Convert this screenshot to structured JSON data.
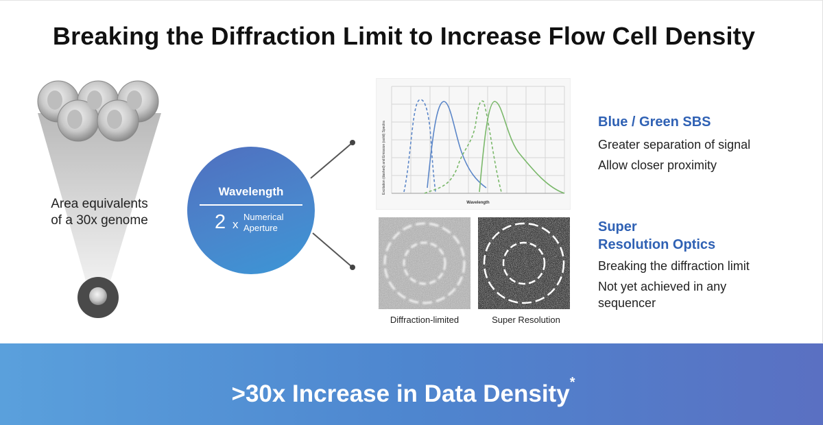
{
  "title": "Breaking the Diffraction Limit to Increase Flow Cell Density",
  "left": {
    "area_line1": "Area equivalents",
    "area_line2": "of a 30x genome"
  },
  "circle": {
    "wavelength": "Wavelength",
    "factor": "2",
    "factor_suffix": "x",
    "na_line1": "Numerical",
    "na_line2": "Aperture"
  },
  "spectra_chart": {
    "ylabel": "Excitation (dashed) and Emission (solid) Spectra",
    "xlabel": "Wavelength",
    "colors": {
      "blue": "#5b86c8",
      "green": "#7ab86a"
    }
  },
  "images": {
    "left_caption": "Diffraction-limited",
    "right_caption": "Super Resolution"
  },
  "right": {
    "block1_title": "Blue / Green SBS",
    "block1_line1": "Greater separation of signal",
    "block1_line2": "Allow closer proximity",
    "block2_title_line1": "Super",
    "block2_title_line2": "Resolution Optics",
    "block2_line1": "Breaking the diffraction limit",
    "block2_line2": "Not yet achieved in any",
    "block2_line3": "sequencer"
  },
  "banner": {
    "text": ">30x Increase in Data Density",
    "footnote_mark": "*"
  },
  "colors": {
    "accent_blue": "#2f61b4",
    "banner_start": "#5aa0dc",
    "banner_end": "#5a70c2"
  }
}
